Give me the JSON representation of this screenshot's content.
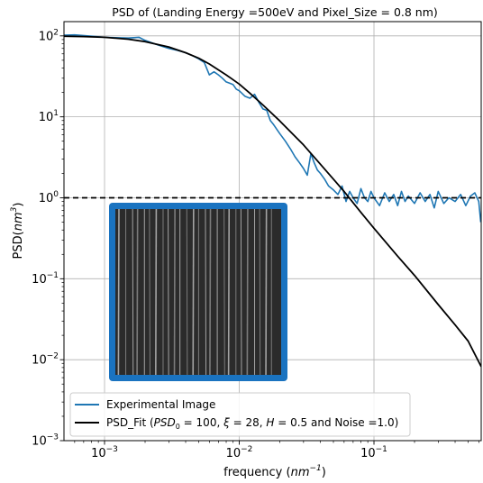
{
  "chart_data": {
    "type": "line",
    "title": "PSD of (Landing Energy =500eV and Pixel_Size = 0.8 nm)",
    "xlabel": {
      "main": "frequency (",
      "unit_base": "nm",
      "unit_sup": "−1",
      "close": ")"
    },
    "ylabel": {
      "main": "PSD(",
      "unit_base": "nm",
      "unit_sup": "3",
      "close": ")"
    },
    "xscale": "log",
    "yscale": "log",
    "xlim": [
      0.0005,
      0.625
    ],
    "ylim": [
      0.001,
      150
    ],
    "grid": true,
    "legend_position": "lower-left",
    "x_ticks": [
      {
        "value": 0.001,
        "base": "10",
        "exp": "−3"
      },
      {
        "value": 0.01,
        "base": "10",
        "exp": "−2"
      },
      {
        "value": 0.1,
        "base": "10",
        "exp": "−1"
      }
    ],
    "y_ticks": [
      {
        "value": 0.001,
        "base": "10",
        "exp": "−3"
      },
      {
        "value": 0.01,
        "base": "10",
        "exp": "−2"
      },
      {
        "value": 0.1,
        "base": "10",
        "exp": "−1"
      },
      {
        "value": 1,
        "base": "10",
        "exp": "0"
      },
      {
        "value": 10,
        "base": "10",
        "exp": "1"
      },
      {
        "value": 100,
        "base": "10",
        "exp": "2"
      }
    ],
    "series": [
      {
        "name": "Experimental Image",
        "color": "#1f77b4",
        "x": [
          0.0005,
          0.0006,
          0.0008,
          0.001,
          0.0012,
          0.0015,
          0.0018,
          0.002,
          0.0025,
          0.003,
          0.0035,
          0.004,
          0.0045,
          0.005,
          0.0055,
          0.006,
          0.0065,
          0.007,
          0.0075,
          0.008,
          0.0085,
          0.009,
          0.0095,
          0.01,
          0.011,
          0.012,
          0.013,
          0.014,
          0.015,
          0.016,
          0.017,
          0.018,
          0.019,
          0.02,
          0.022,
          0.024,
          0.026,
          0.028,
          0.03,
          0.032,
          0.034,
          0.036,
          0.038,
          0.04,
          0.043,
          0.046,
          0.05,
          0.054,
          0.058,
          0.062,
          0.066,
          0.07,
          0.075,
          0.08,
          0.085,
          0.09,
          0.095,
          0.1,
          0.11,
          0.12,
          0.13,
          0.14,
          0.15,
          0.16,
          0.17,
          0.18,
          0.2,
          0.22,
          0.24,
          0.26,
          0.28,
          0.3,
          0.33,
          0.36,
          0.4,
          0.44,
          0.48,
          0.52,
          0.56,
          0.6,
          0.62
        ],
        "y": [
          102,
          103,
          99,
          96,
          95,
          94,
          96,
          88,
          77,
          70,
          66,
          62,
          57,
          52,
          47,
          33,
          36,
          33,
          30,
          27,
          26,
          25,
          22,
          21,
          18,
          17,
          19,
          15,
          12.5,
          12,
          9,
          8,
          7,
          6.2,
          5,
          4,
          3.2,
          2.7,
          2.3,
          1.9,
          3.5,
          2.7,
          2.2,
          2.0,
          1.7,
          1.4,
          1.25,
          1.1,
          1.4,
          0.9,
          1.2,
          1.0,
          0.85,
          1.3,
          1.0,
          0.9,
          1.2,
          1.0,
          0.8,
          1.15,
          0.9,
          1.1,
          0.8,
          1.2,
          0.9,
          1.05,
          0.85,
          1.15,
          0.9,
          1.1,
          0.75,
          1.2,
          0.85,
          1.0,
          0.9,
          1.1,
          0.8,
          1.05,
          1.15,
          0.9,
          0.5
        ]
      },
      {
        "name": "PSD_Fit",
        "legend_parts": {
          "prefix": "PSD_Fit (",
          "psd_sym": "PSD",
          "psd_sub": "0",
          "psd_val": " = 100, ",
          "xi_sym": "ξ",
          "xi_val": " = 28, ",
          "h_sym": "H",
          "h_val": " = 0.5 and Noise =1.0)"
        },
        "color": "#000000",
        "x": [
          0.0005,
          0.0007,
          0.001,
          0.0015,
          0.002,
          0.003,
          0.004,
          0.005,
          0.006,
          0.008,
          0.01,
          0.012,
          0.015,
          0.02,
          0.025,
          0.03,
          0.04,
          0.05,
          0.06,
          0.08,
          0.1,
          0.15,
          0.2,
          0.3,
          0.4,
          0.5,
          0.625
        ],
        "y": [
          99,
          98,
          96,
          91,
          85,
          73,
          62,
          53,
          45,
          33,
          25.4,
          19.6,
          14,
          8.9,
          6.1,
          4.5,
          2.6,
          1.7,
          1.2,
          0.66,
          0.42,
          0.19,
          0.11,
          0.048,
          0.027,
          0.017,
          0.0082
        ]
      }
    ],
    "reference_line": {
      "y": 1.0,
      "style": "dashed",
      "color": "#000000"
    }
  },
  "inset_image": {
    "frame_color": "#1a73c0",
    "background": "#2b2b2b",
    "stripe_count": 26
  }
}
